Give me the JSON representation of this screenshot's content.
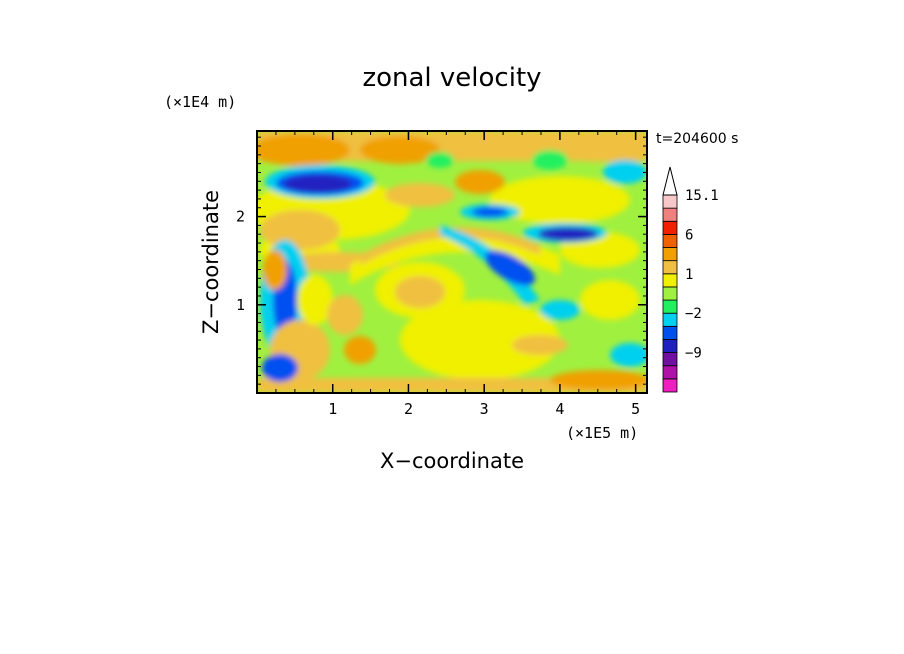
{
  "chart_data": {
    "type": "heatmap",
    "title": "zonal velocity",
    "xlabel": "X−coordinate",
    "ylabel": "Z−coordinate",
    "x_scale_label": "(×1E5 m)",
    "y_scale_label": "(×1E4 m)",
    "time_label": "t=204600 s",
    "xlim": [
      0,
      5.15
    ],
    "ylim": [
      0,
      2.97
    ],
    "x_ticks": [
      1,
      2,
      3,
      4,
      5
    ],
    "x_tick_labels": [
      "1",
      "2",
      "3",
      "4",
      "5"
    ],
    "y_ticks": [
      1,
      2
    ],
    "y_tick_labels": [
      "1",
      "2"
    ],
    "colorbar": {
      "levels": [
        -15,
        -12,
        -9,
        -6,
        -4,
        -2,
        -1,
        0,
        1,
        2,
        3,
        6,
        9,
        12,
        15.1
      ],
      "labels": [
        {
          "value": 15.1,
          "text": "15.1"
        },
        {
          "value": 6,
          "text": "6"
        },
        {
          "value": 1,
          "text": "1"
        },
        {
          "value": -2,
          "text": "−2"
        },
        {
          "value": -9,
          "text": "−9"
        }
      ],
      "colors": [
        "#f020c0",
        "#b012a8",
        "#7010a0",
        "#2020c0",
        "#0050f0",
        "#00d0f0",
        "#20f060",
        "#a0f040",
        "#f0f000",
        "#f0c040",
        "#f0a000",
        "#f06000",
        "#f02000",
        "#f08080",
        "#f8c8c8"
      ],
      "extend": "max"
    },
    "grid": false,
    "legend": "colorbar-right"
  }
}
